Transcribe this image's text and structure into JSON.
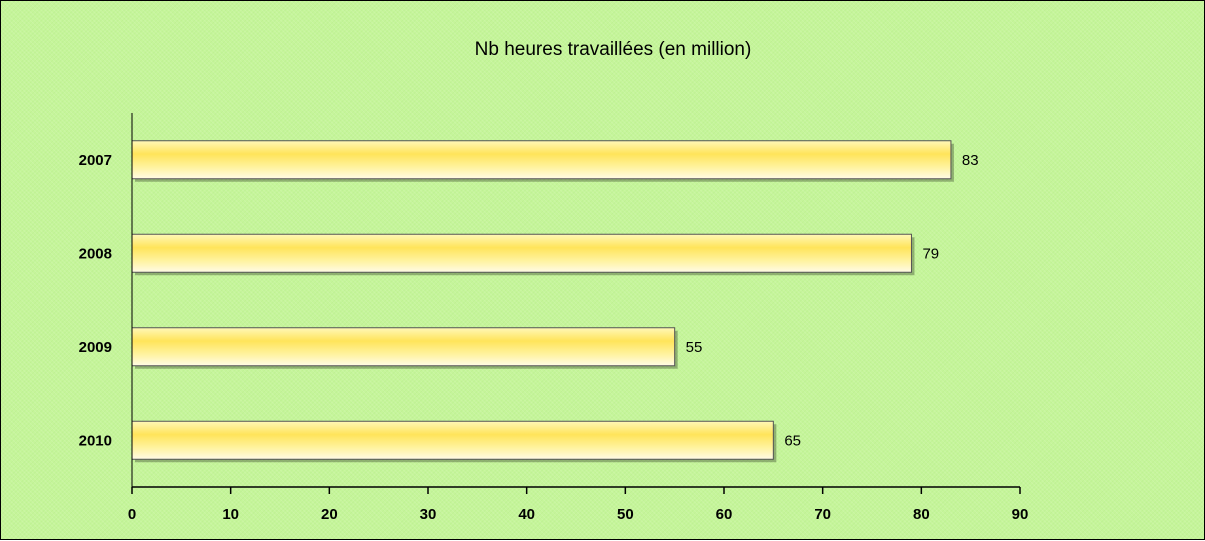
{
  "chart_data": {
    "type": "bar",
    "orientation": "horizontal",
    "title": "Nb heures travaillées (en million)",
    "categories": [
      "2007",
      "2008",
      "2009",
      "2010"
    ],
    "values": [
      83,
      79,
      55,
      65
    ],
    "data_labels": [
      "83",
      "79",
      "55",
      "65"
    ],
    "xlim": [
      0,
      90
    ],
    "x_ticks": [
      0,
      10,
      20,
      30,
      40,
      50,
      60,
      70,
      80,
      90
    ],
    "xlabel": "",
    "ylabel": "",
    "grid": false,
    "legend": "none",
    "colors": {
      "background": "#c5f59a",
      "bar_light": "#fffbd0",
      "bar_mid": "#ffe45a",
      "bar_dark": "#f3c200",
      "bar_border": "#555555",
      "axis": "#000000"
    }
  }
}
